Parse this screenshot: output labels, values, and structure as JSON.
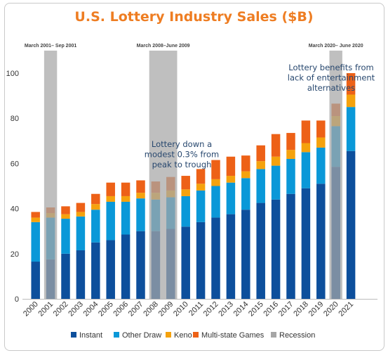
{
  "chart_data": {
    "type": "bar",
    "stacked": true,
    "title": "U.S. Lottery Industry Sales ($B)",
    "categories": [
      "2000",
      "2001",
      "2002",
      "2003",
      "2004",
      "2005",
      "2006",
      "2007",
      "2008",
      "2009",
      "2010",
      "2011",
      "2012",
      "2013",
      "2014",
      "2015",
      "2016",
      "2017",
      "2018",
      "2019",
      "2020",
      "2021"
    ],
    "ylim": [
      0,
      100
    ],
    "yticks": [
      0,
      20,
      40,
      60,
      80,
      100
    ],
    "grid": false,
    "legend_position": "bottom",
    "series": [
      {
        "name": "Instant",
        "color": "#0d4f9c",
        "values": [
          16.5,
          17.5,
          20,
          21.5,
          25,
          26,
          28.5,
          30,
          30,
          31,
          32,
          34,
          36,
          37.5,
          39.5,
          42.5,
          44,
          46.5,
          49,
          51,
          58.5,
          65.5
        ]
      },
      {
        "name": "Other Draw",
        "color": "#0a98d8",
        "values": [
          17.5,
          18.5,
          15.5,
          15,
          14.5,
          17,
          14.5,
          14.5,
          14,
          14,
          13.5,
          14,
          14,
          14,
          14,
          15,
          15,
          15.5,
          16,
          16,
          18,
          19.5
        ]
      },
      {
        "name": "Keno",
        "color": "#f5a20d",
        "values": [
          2,
          2,
          2,
          2,
          2.5,
          2.5,
          2.5,
          2.5,
          3,
          3,
          3,
          3,
          3,
          3,
          3,
          3.5,
          4,
          4,
          4,
          4.5,
          4.5,
          5.5
        ]
      },
      {
        "name": "Multi-state Games",
        "color": "#ed6117",
        "values": [
          2.5,
          2.5,
          3.5,
          4,
          4.5,
          6,
          6,
          5.5,
          5,
          6,
          6,
          6.5,
          8.5,
          8.5,
          7,
          7,
          10,
          7.5,
          10,
          7.5,
          5.5,
          9.5
        ]
      }
    ],
    "recession": {
      "name": "Recession",
      "color": "#a6a6a6",
      "periods": [
        {
          "label": "March 2001– Sep 2001",
          "start_index": 1,
          "end_index": 1
        },
        {
          "label": "March 2008–June 2009",
          "start_index": 8,
          "end_index": 9
        },
        {
          "label": "March 2020– June 2020",
          "start_index": 20,
          "end_index": 20
        }
      ]
    },
    "annotations": [
      {
        "lines": [
          "Lottery down a",
          "modest 0.3% from",
          "peak to trough"
        ]
      },
      {
        "lines": [
          "Lottery benefits from",
          "lack of entertainment",
          "alternatives"
        ]
      }
    ]
  }
}
